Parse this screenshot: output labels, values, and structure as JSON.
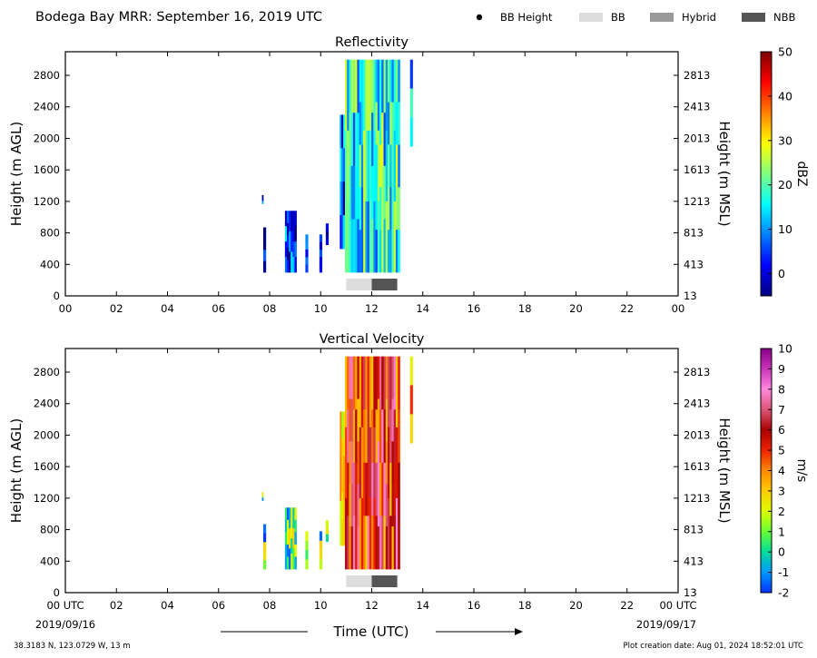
{
  "figure": {
    "title": "Bodega Bay MRR:  September 16, 2019 UTC",
    "legend": [
      {
        "label": "BB Height",
        "kind": "dot",
        "color": "#000000"
      },
      {
        "label": "BB",
        "kind": "box",
        "color": "#dddddd"
      },
      {
        "label": "Hybrid",
        "kind": "box",
        "color": "#999999"
      },
      {
        "label": "NBB",
        "kind": "box",
        "color": "#555555"
      }
    ],
    "x_axis_label": "Time (UTC)",
    "start_date": "2019/09/16",
    "end_date": "2019/09/17",
    "location": "38.3183 N, 123.0729 W, 13 m",
    "creation_date": "Plot creation date: Aug 01, 2024 18:52:01 UTC"
  },
  "chart_data": [
    {
      "type": "heatmap",
      "title": "Reflectivity",
      "ylabel": "Height (m AGL)",
      "ylabel_right": "Height (m MSL)",
      "colorbar_label": "dBZ",
      "x_ticks": [
        "00",
        "02",
        "04",
        "06",
        "08",
        "10",
        "12",
        "14",
        "16",
        "18",
        "20",
        "22",
        "00"
      ],
      "xlim": [
        0,
        24
      ],
      "ylim": [
        0,
        3100
      ],
      "y_ticks": [
        0,
        400,
        800,
        1200,
        1600,
        2000,
        2400,
        2800
      ],
      "y_ticks_right": [
        "13",
        "413",
        "813",
        "1213",
        "1613",
        "2013",
        "2413",
        "2813"
      ],
      "colorbar_range": [
        -5,
        50
      ],
      "colorbar_ticks": [
        0,
        10,
        20,
        30,
        40,
        50
      ],
      "colorbar_colors": [
        "#00007f",
        "#0000ff",
        "#007fff",
        "#00ffff",
        "#7fff7f",
        "#ffff00",
        "#ff7f00",
        "#ff0000",
        "#7f0000"
      ],
      "regions": [
        {
          "t0": 7.7,
          "t1": 7.75,
          "h0": 1170,
          "h1": 1280,
          "v": 0
        },
        {
          "t0": 7.75,
          "t1": 7.85,
          "h0": 300,
          "h1": 870,
          "v": 2
        },
        {
          "t0": 8.6,
          "t1": 9.05,
          "h0": 300,
          "h1": 1080,
          "v": 4
        },
        {
          "t0": 9.4,
          "t1": 9.5,
          "h0": 300,
          "h1": 780,
          "v": 2
        },
        {
          "t0": 9.95,
          "t1": 10.05,
          "h0": 300,
          "h1": 780,
          "v": 1
        },
        {
          "t0": 10.2,
          "t1": 10.3,
          "h0": 650,
          "h1": 920,
          "v": 2
        },
        {
          "t0": 10.75,
          "t1": 10.95,
          "h0": 600,
          "h1": 2300,
          "v": 6
        },
        {
          "t0": 10.95,
          "t1": 13.1,
          "h0": 300,
          "h1": 3000,
          "v": 17
        },
        {
          "t0": 13.5,
          "t1": 13.6,
          "h0": 1900,
          "h1": 3000,
          "v": 12
        }
      ],
      "bright_band": [
        {
          "type": "BB",
          "t0": 11.0,
          "t1": 12.0
        },
        {
          "type": "NBB",
          "t0": 12.0,
          "t1": 13.0
        }
      ]
    },
    {
      "type": "heatmap",
      "title": "Vertical Velocity",
      "ylabel": "Height (m AGL)",
      "ylabel_right": "Height (m MSL)",
      "colorbar_label": "m/s",
      "x_ticks": [
        "00 UTC",
        "02",
        "04",
        "06",
        "08",
        "10",
        "12",
        "14",
        "16",
        "18",
        "20",
        "22",
        "00 UTC"
      ],
      "xlim": [
        0,
        24
      ],
      "ylim": [
        0,
        3100
      ],
      "y_ticks": [
        0,
        400,
        800,
        1200,
        1600,
        2000,
        2400,
        2800
      ],
      "y_ticks_right": [
        "13",
        "413",
        "813",
        "1213",
        "1613",
        "2013",
        "2413",
        "2813"
      ],
      "colorbar_range": [
        -2,
        10
      ],
      "colorbar_ticks": [
        -2,
        -1,
        0,
        1,
        2,
        3,
        4,
        5,
        6,
        7,
        8,
        9,
        10
      ],
      "colorbar_colors": [
        "#0033ff",
        "#0099ff",
        "#00dd99",
        "#66ff33",
        "#ddff00",
        "#ffcc00",
        "#ff8800",
        "#ee2200",
        "#aa0000",
        "#dd5577",
        "#ff88dd",
        "#cc33bb",
        "#880088"
      ],
      "regions": [
        {
          "t0": 7.7,
          "t1": 7.75,
          "h0": 1170,
          "h1": 1280,
          "v": 1
        },
        {
          "t0": 7.75,
          "t1": 7.85,
          "h0": 300,
          "h1": 870,
          "v": 0.5
        },
        {
          "t0": 8.6,
          "t1": 9.05,
          "h0": 300,
          "h1": 1080,
          "v": 0.8
        },
        {
          "t0": 9.4,
          "t1": 9.5,
          "h0": 300,
          "h1": 780,
          "v": 0.5
        },
        {
          "t0": 9.95,
          "t1": 10.05,
          "h0": 300,
          "h1": 780,
          "v": 0.6
        },
        {
          "t0": 10.2,
          "t1": 10.3,
          "h0": 650,
          "h1": 920,
          "v": 0.8
        },
        {
          "t0": 10.75,
          "t1": 10.95,
          "h0": 600,
          "h1": 2300,
          "v": 3
        },
        {
          "t0": 10.95,
          "t1": 13.1,
          "h0": 300,
          "h1": 3000,
          "v": 5.5
        },
        {
          "t0": 13.5,
          "t1": 13.6,
          "h0": 1900,
          "h1": 3000,
          "v": 4
        }
      ],
      "bright_band": [
        {
          "type": "BB",
          "t0": 11.0,
          "t1": 12.0
        },
        {
          "type": "NBB",
          "t0": 12.0,
          "t1": 13.0
        }
      ]
    }
  ]
}
